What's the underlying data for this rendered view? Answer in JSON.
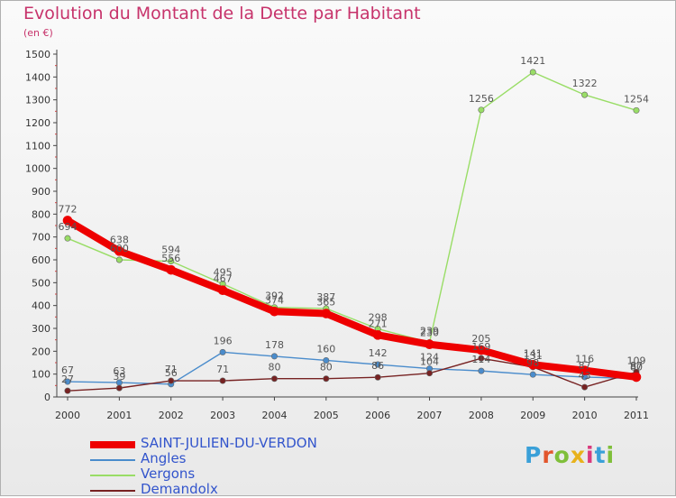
{
  "page": {
    "title": "Evolution du Montant de la Dette par Habitant",
    "unit": "(en €)",
    "logo": [
      "P",
      "r",
      "o",
      "x",
      "i",
      "t",
      "i"
    ],
    "logo_colors": [
      "#3aa0d8",
      "#e2562c",
      "#7fbf3a",
      "#e8b21c",
      "#d93a7e",
      "#3aa0d8",
      "#7fbf3a"
    ]
  },
  "chart_data": {
    "type": "line",
    "title": "Evolution du Montant de la Dette par Habitant",
    "ylabel": "(en €)",
    "xlabel": "",
    "x": [
      "2000",
      "2001",
      "2002",
      "2003",
      "2004",
      "2005",
      "2006",
      "2007",
      "2008",
      "2009",
      "2010",
      "2011"
    ],
    "yticks": [
      0,
      100,
      200,
      300,
      400,
      500,
      600,
      700,
      800,
      900,
      1000,
      1100,
      1200,
      1300,
      1400,
      1500
    ],
    "ylim": [
      0,
      1500
    ],
    "grid": false,
    "legend": "bottom-left",
    "series": [
      {
        "name": "SAINT-JULIEN-DU-VERDON",
        "color": "#ee0000",
        "values": [
          772,
          638,
          556,
          467,
          374,
          365,
          271,
          230,
          205,
          141,
          116,
          87
        ]
      },
      {
        "name": "Angles",
        "color": "#4a8ccc",
        "values": [
          67,
          63,
          56,
          196,
          178,
          160,
          142,
          124,
          114,
          98,
          87,
          80
        ]
      },
      {
        "name": "Vergons",
        "color": "#99dd66",
        "values": [
          694,
          600,
          594,
          495,
          392,
          387,
          298,
          239,
          1256,
          1421,
          1322,
          1254
        ]
      },
      {
        "name": "Demandolx",
        "color": "#772222",
        "values": [
          27,
          39,
          71,
          71,
          80,
          80,
          86,
          104,
          169,
          131,
          43,
          109
        ]
      }
    ]
  }
}
